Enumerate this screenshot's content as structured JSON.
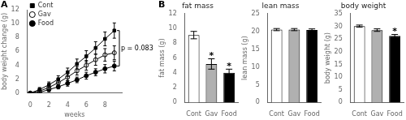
{
  "chart_data": [
    {
      "type": "line",
      "panel_label": "A",
      "x_label": "weeks",
      "y_label": "body weight change (g)",
      "x": [
        0,
        1,
        2,
        3,
        4,
        5,
        6,
        7,
        8,
        9
      ],
      "xlim": [
        -0.3,
        9.8
      ],
      "xticks": [
        0,
        2,
        4,
        6,
        8
      ],
      "ylim": [
        0,
        12
      ],
      "yticks": [
        0,
        2,
        4,
        6,
        8,
        10,
        12
      ],
      "grid": false,
      "legend": "upper left",
      "series": [
        {
          "name": "Cont",
          "color": "black",
          "marker": "square",
          "values": [
            0,
            0.5,
            1.2,
            2.0,
            3.0,
            4.2,
            5.3,
            6.5,
            7.8,
            9.0
          ],
          "errors": [
            0,
            0.3,
            0.4,
            0.5,
            0.6,
            0.7,
            0.8,
            0.9,
            1.0,
            1.1
          ]
        },
        {
          "name": "Gav",
          "color": "black",
          "marker": "open-circle",
          "values": [
            0,
            0.3,
            0.8,
            1.5,
            2.3,
            3.2,
            4.0,
            4.8,
            5.5,
            5.8
          ],
          "errors": [
            0,
            0.3,
            0.4,
            0.5,
            0.5,
            0.6,
            0.7,
            0.8,
            0.9,
            1.0
          ]
        },
        {
          "name": "Food",
          "color": "black",
          "marker": "circle",
          "values": [
            0,
            0.1,
            0.5,
            0.9,
            1.4,
            1.9,
            2.5,
            3.0,
            3.5,
            3.9
          ],
          "errors": [
            0,
            0.2,
            0.3,
            0.3,
            0.4,
            0.4,
            0.5,
            0.5,
            0.6,
            0.7
          ]
        }
      ],
      "annotations": [
        {
          "text": "p = 0.083",
          "between": [
            "Cont",
            "Food"
          ]
        }
      ]
    },
    {
      "type": "bar",
      "panel_label": "B",
      "title": "fat mass",
      "y_label": "fat mass (g)",
      "categories": [
        "Cont",
        "Gav",
        "Food"
      ],
      "values": [
        9.1,
        5.2,
        4.0
      ],
      "errors": [
        0.5,
        0.7,
        0.5
      ],
      "colors": [
        "white",
        "#b0b0b0",
        "black"
      ],
      "ylim": [
        0,
        12
      ],
      "yticks": [
        0,
        2,
        4,
        6,
        8,
        10,
        12
      ],
      "grid": false,
      "annotations": [
        {
          "category": "Gav",
          "text": "*"
        },
        {
          "category": "Food",
          "text": "*"
        }
      ]
    },
    {
      "type": "bar",
      "title": "lean mass",
      "y_label": "lean mass (g)",
      "categories": [
        "Cont",
        "Gav",
        "Food"
      ],
      "values": [
        20.5,
        20.5,
        20.4
      ],
      "errors": [
        0.3,
        0.3,
        0.3
      ],
      "colors": [
        "white",
        "#b0b0b0",
        "black"
      ],
      "ylim": [
        0,
        25
      ],
      "yticks": [
        0,
        5,
        10,
        15,
        20,
        25
      ],
      "grid": false
    },
    {
      "type": "bar",
      "title": "body weight",
      "y_label": "body weight (g)",
      "categories": [
        "Cont",
        "Gav",
        "Food"
      ],
      "values": [
        30.1,
        28.5,
        26.2
      ],
      "errors": [
        0.4,
        0.5,
        0.6
      ],
      "colors": [
        "white",
        "#b0b0b0",
        "black"
      ],
      "ylim": [
        0,
        35
      ],
      "yticks": [
        0,
        5,
        10,
        15,
        20,
        25,
        30,
        35
      ],
      "grid": false,
      "annotations": [
        {
          "category": "Food",
          "text": "*"
        }
      ]
    }
  ]
}
